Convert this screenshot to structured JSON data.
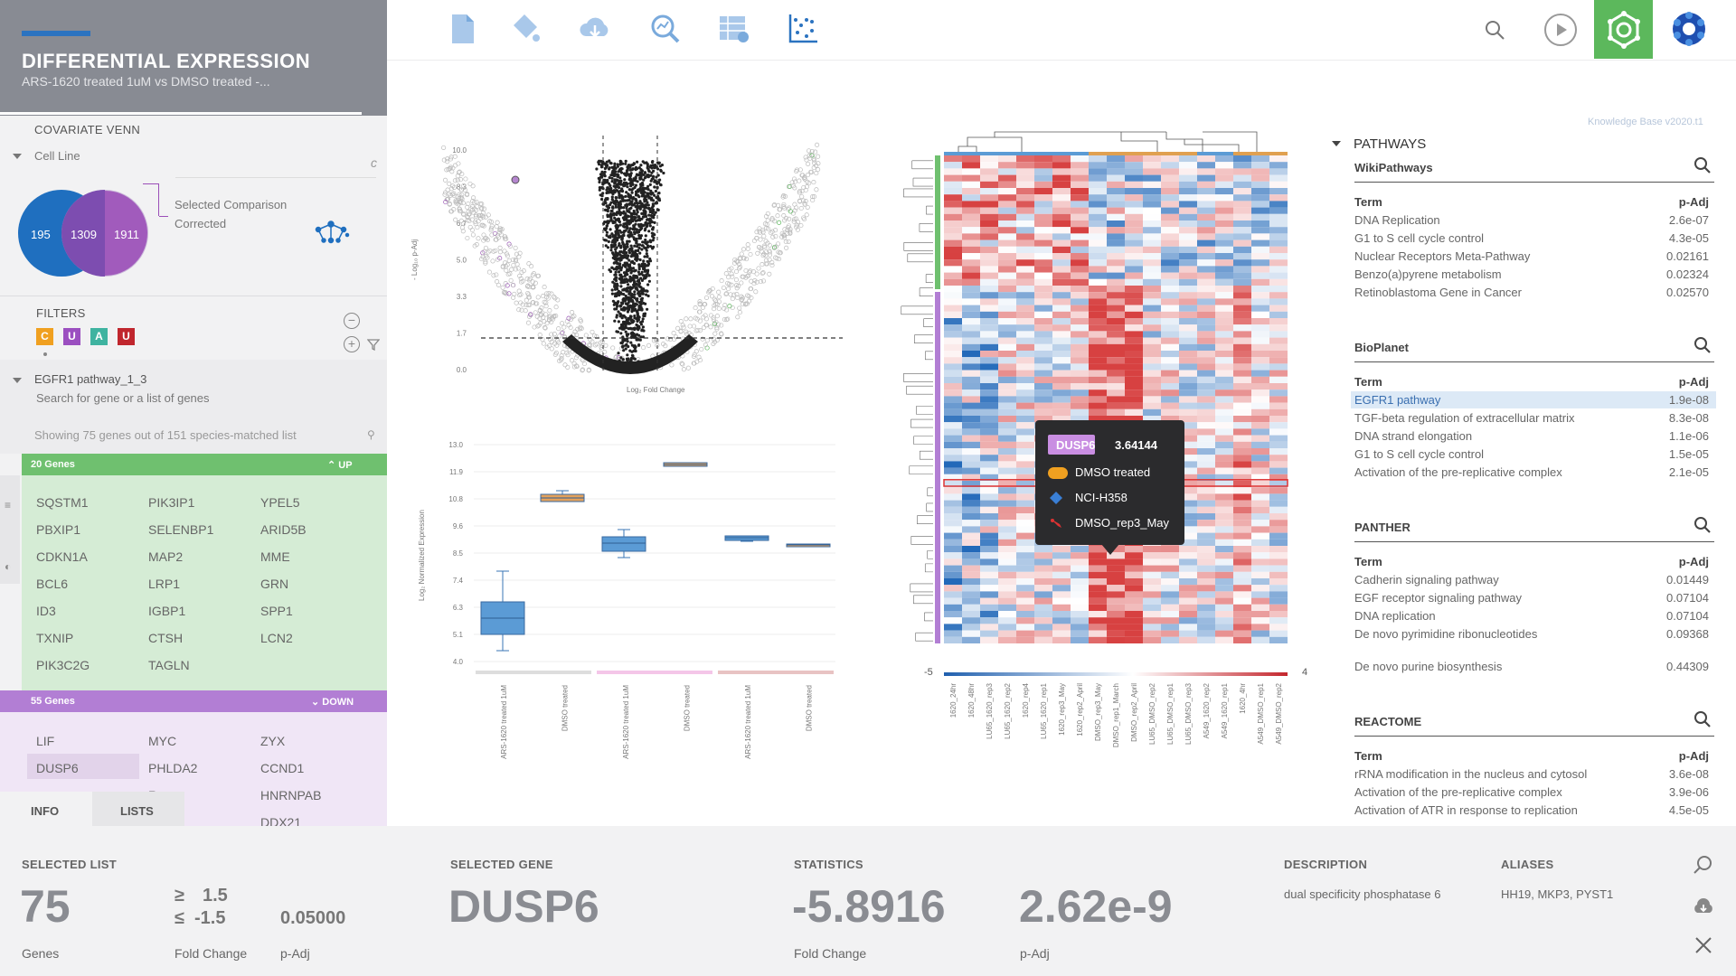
{
  "app": {
    "title": "DIFFERENTIAL EXPRESSION",
    "subtitle": "ARS-1620 treated 1uM vs DMSO treated -..."
  },
  "venn_section": {
    "header": "COVARIATE VENN",
    "dropdown_label": "Cell Line",
    "left_count": "195",
    "overlap_count": "1309",
    "right_count": "1911",
    "selected_comparison_label": "Selected Comparison",
    "corrected_label": "Corrected",
    "colors": {
      "left": "#1f6fbf",
      "right": "#9b59b6"
    }
  },
  "filters": {
    "header": "FILTERS",
    "badges": [
      {
        "label": "C",
        "color": "#f0a020"
      },
      {
        "label": "U",
        "color": "#9b4fc0"
      },
      {
        "label": "A",
        "color": "#3fb3a0"
      },
      {
        "label": "U",
        "color": "#c0262d"
      }
    ]
  },
  "gene_list": {
    "name": "EGFR1 pathway_1_3",
    "search_placeholder": "Search for gene or a list of genes",
    "showing_text": "Showing 75 genes out of 151 species-matched list",
    "up_header": "20 Genes",
    "up_label": "UP",
    "up_genes": [
      "SQSTM1",
      "PIK3IP1",
      "YPEL5",
      "PBXIP1",
      "SELENBP1",
      "ARID5B",
      "CDKN1A",
      "MAP2",
      "MME",
      "BCL6",
      "LRP1",
      "GRN",
      "ID3",
      "IGBP1",
      "SPP1",
      "TXNIP",
      "CTSH",
      "LCN2",
      "PIK3C2G",
      "TAGLN"
    ],
    "down_header": "55 Genes",
    "down_label": "DOWN",
    "down_genes": [
      "LIF",
      "MYC",
      "ZYX",
      "DUSP6",
      "PHLDA2",
      "CCND1",
      "",
      "R",
      "HNRNPAB",
      "",
      "",
      "DDX21"
    ],
    "tabs": [
      "INFO",
      "LISTS"
    ],
    "up_color": "#d5ecd5",
    "down_color": "#eadcf1"
  },
  "volcano": {
    "ylabel": "- Log₁₀ p-Adj",
    "xlabel": "Log₂ Fold Change",
    "yticks": [
      "10.0",
      "8.3",
      "6.7",
      "5.0",
      "3.3",
      "1.7",
      "0.0"
    ]
  },
  "boxplot": {
    "ylabel": "Log₂ Normalized Expression",
    "yticks": [
      "13.0",
      "11.9",
      "10.8",
      "9.6",
      "8.5",
      "7.4",
      "6.3",
      "5.1",
      "4.0"
    ],
    "xticks": [
      "ARS-1620 treated 1uM",
      "DMSO treated",
      "ARS-1620 treated 1uM",
      "DMSO treated",
      "ARS-1620 treated 1uM",
      "DMSO treated"
    ]
  },
  "heatmap": {
    "scale_min": "-5",
    "scale_max": "4",
    "columns": [
      "1620_24hr",
      "1620_48hr",
      "LU65_1620_rep3",
      "LU65_1620_rep2",
      "1620_rep4",
      "LU65_1620_rep1",
      "1620_rep3_May",
      "1620_rep2_April",
      "DMSO_rep3_May",
      "DMSO_rep1_March",
      "DMSO_rep2_April",
      "LU65_DMSO_rep2",
      "LU65_DMSO_rep1",
      "LU65_DMSO_rep3",
      "A549_1620_rep2",
      "A549_1620_rep1",
      "1620_4hr",
      "A549_DMSO_rep1",
      "A549_DMSO_rep2"
    ]
  },
  "tooltip": {
    "gene": "DUSP6",
    "value": "3.64144",
    "treatment": "DMSO treated",
    "cell_line": "NCI-H358",
    "sample": "DMSO_rep3_May"
  },
  "pathways": {
    "kb_version": "Knowledge Base v2020.t1",
    "header": "PATHWAYS",
    "term_header": "Term",
    "padj_header": "p-Adj",
    "databases": [
      {
        "name": "WikiPathways",
        "rows": [
          {
            "term": "DNA Replication",
            "padj": "2.6e-07"
          },
          {
            "term": "G1 to S cell cycle control",
            "padj": "4.3e-05"
          },
          {
            "term": "Nuclear Receptors Meta-Pathway",
            "padj": "0.02161"
          },
          {
            "term": "Benzo(a)pyrene metabolism",
            "padj": "0.02324"
          },
          {
            "term": "Retinoblastoma Gene in Cancer",
            "padj": "0.02570"
          }
        ]
      },
      {
        "name": "BioPlanet",
        "rows": [
          {
            "term": "EGFR1 pathway",
            "padj": "1.9e-08"
          },
          {
            "term": "TGF-beta regulation of extracellular matrix",
            "padj": "8.3e-08"
          },
          {
            "term": "DNA strand elongation",
            "padj": "1.1e-06"
          },
          {
            "term": "G1 to S cell cycle control",
            "padj": "1.5e-05"
          },
          {
            "term": "Activation of the pre-replicative complex",
            "padj": "2.1e-05"
          }
        ]
      },
      {
        "name": "PANTHER",
        "rows": [
          {
            "term": "Cadherin signaling pathway",
            "padj": "0.01449"
          },
          {
            "term": "EGF receptor signaling pathway",
            "padj": "0.07104"
          },
          {
            "term": "DNA replication",
            "padj": "0.07104"
          },
          {
            "term": "De novo pyrimidine ribonucleotides",
            "padj": "0.09368"
          },
          {
            "term": "De novo purine biosynthesis",
            "padj": "0.44309"
          }
        ]
      },
      {
        "name": "REACTOME",
        "rows": [
          {
            "term": "rRNA modification in the nucleus and cytosol",
            "padj": "3.6e-08"
          },
          {
            "term": "Activation of the pre-replicative complex",
            "padj": "3.9e-06"
          },
          {
            "term": "Activation of ATR in response to replication",
            "padj": "4.5e-05"
          }
        ]
      }
    ]
  },
  "bottom": {
    "selected_list_label": "SELECTED LIST",
    "genes_count": "75",
    "genes_label": "Genes",
    "fc_ge": "≥",
    "fc_le": "≤",
    "fc_up": "1.5",
    "fc_down": "-1.5",
    "fc_label": "Fold Change",
    "padj_value": "0.05000",
    "padj_label": "p-Adj",
    "selected_gene_label": "SELECTED GENE",
    "gene_name": "DUSP6",
    "statistics_label": "STATISTICS",
    "fold_change_value": "-5.8916",
    "fold_change_label": "Fold Change",
    "stat_padj_value": "2.62e-9",
    "stat_padj_label": "p-Adj",
    "description_label": "DESCRIPTION",
    "description_text": "dual specificity phosphatase 6",
    "aliases_label": "ALIASES",
    "aliases_text": "HH19, MKP3, PYST1"
  }
}
